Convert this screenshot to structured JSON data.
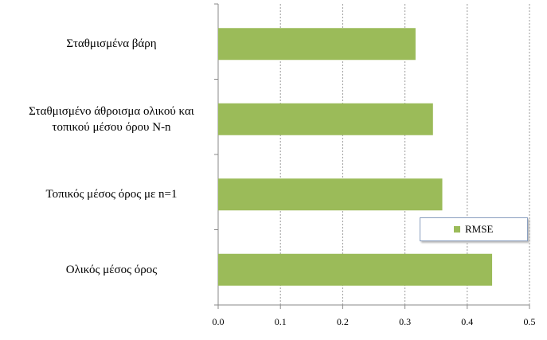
{
  "chart_data": {
    "type": "barh",
    "categories": [
      "Σταθμισμένα βάρη",
      "Σταθμισμένο άθροισμα ολικού και τοπικού μέσου όρου N-n",
      "Τοπικός μέσος όρος με n=1",
      "Ολικός μέσος όρος"
    ],
    "series": [
      {
        "name": "RMSE",
        "color": "#9bbb59",
        "values": [
          0.317,
          0.345,
          0.36,
          0.44
        ]
      }
    ],
    "xlim": [
      0,
      0.5
    ],
    "xticks": [
      {
        "value": 0,
        "label": "0.0"
      },
      0.1,
      0.2,
      0.3,
      0.4,
      0.5
    ],
    "grid": true,
    "legend": "right"
  }
}
